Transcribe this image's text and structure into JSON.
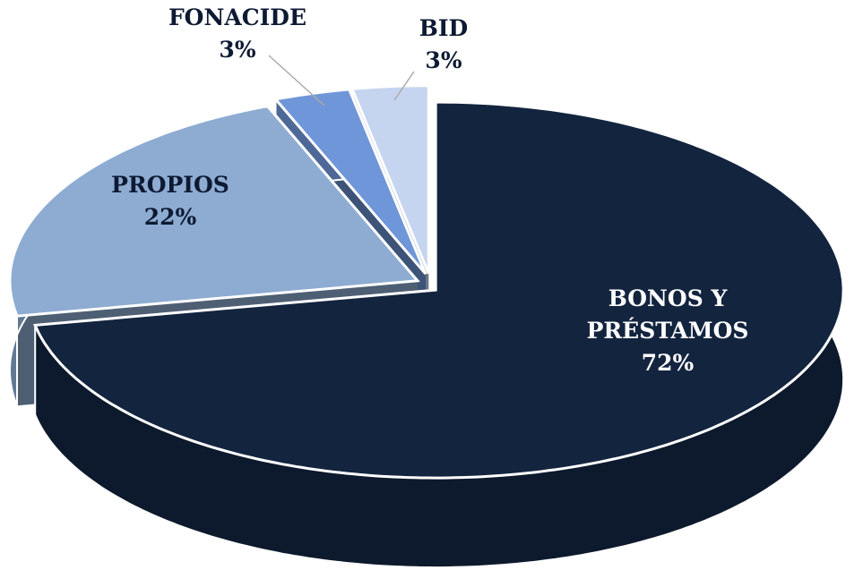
{
  "chart_data": {
    "type": "pie",
    "categories": [
      "BONOS Y PRÉSTAMOS",
      "PROPIOS",
      "FONACIDE",
      "BID"
    ],
    "values": [
      72,
      22,
      3,
      3
    ],
    "value_labels": [
      "72%",
      "22%",
      "3%",
      "3%"
    ],
    "colors": [
      "#13243f",
      "#8eacd2",
      "#6f96d8",
      "#c5d5ef"
    ]
  }
}
